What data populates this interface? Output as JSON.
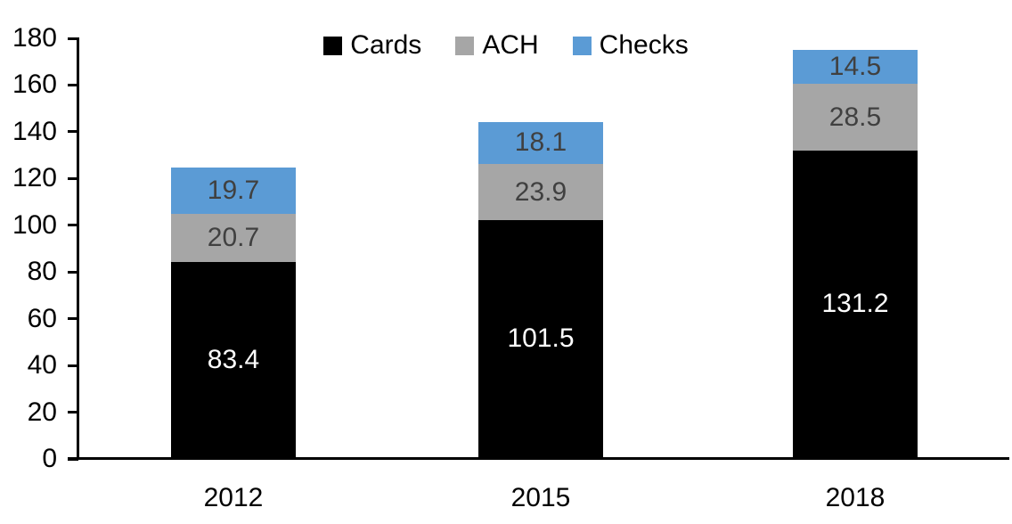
{
  "chart_data": {
    "type": "bar",
    "stacked": true,
    "title": "",
    "xlabel": "",
    "ylabel": "",
    "categories": [
      "2012",
      "2015",
      "2018"
    ],
    "series": [
      {
        "name": "Cards",
        "color": "#000000",
        "label_color": "#ffffff",
        "values": [
          83.4,
          101.5,
          131.2
        ]
      },
      {
        "name": "ACH",
        "color": "#A6A6A6",
        "label_color": "#404040",
        "values": [
          20.7,
          23.9,
          28.5
        ]
      },
      {
        "name": "Checks",
        "color": "#5B9BD5",
        "label_color": "#404040",
        "values": [
          19.7,
          18.1,
          14.5
        ]
      }
    ],
    "totals": [
      123.8,
      143.5,
      174.2
    ],
    "ylim": [
      0,
      180
    ],
    "yticks": [
      0,
      20,
      40,
      60,
      80,
      100,
      120,
      140,
      160,
      180
    ],
    "grid": false,
    "legend_position": "top",
    "legend_entries": [
      "Cards",
      "ACH",
      "Checks"
    ],
    "value_label_decimals": 1
  }
}
